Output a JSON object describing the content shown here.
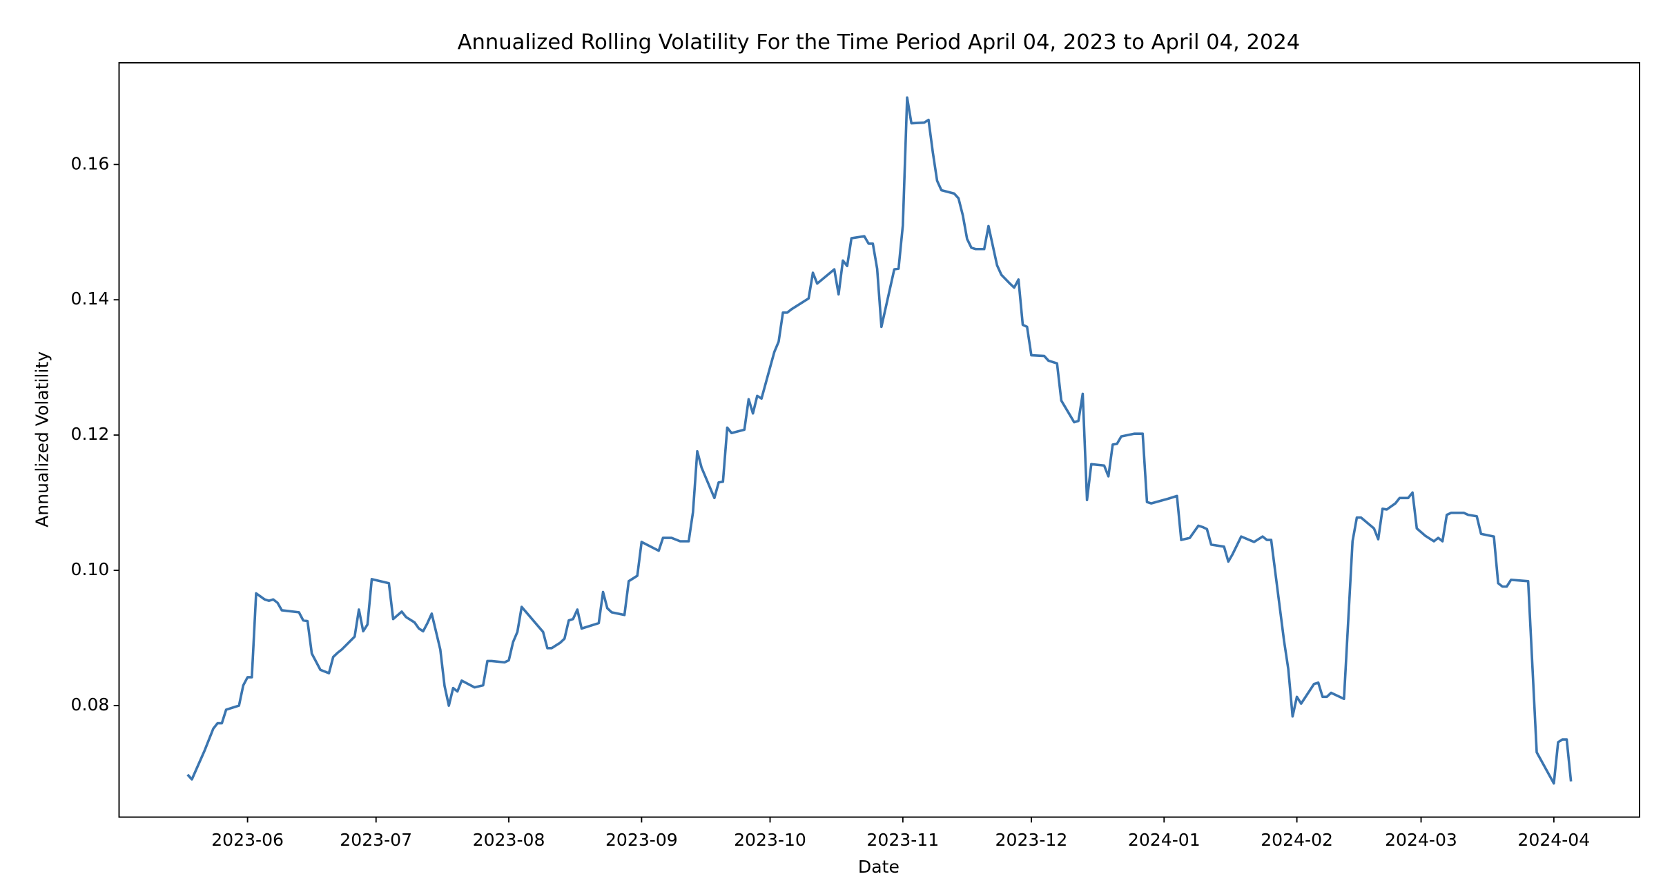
{
  "chart_data": {
    "type": "line",
    "title": "Annualized Rolling Volatility For the Time Period April 04, 2023 to April 04, 2024",
    "x_label": "Date",
    "y_label": "Annualized Volatility",
    "color": "#3b75af",
    "grid": false,
    "xlim": [
      "2023-05-02",
      "2024-04-21"
    ],
    "xticks": [
      {
        "value": "2023-06-01",
        "label": "2023-06"
      },
      {
        "value": "2023-07-01",
        "label": "2023-07"
      },
      {
        "value": "2023-08-01",
        "label": "2023-08"
      },
      {
        "value": "2023-09-01",
        "label": "2023-09"
      },
      {
        "value": "2023-10-01",
        "label": "2023-10"
      },
      {
        "value": "2023-11-01",
        "label": "2023-11"
      },
      {
        "value": "2023-12-01",
        "label": "2023-12"
      },
      {
        "value": "2024-01-01",
        "label": "2024-01"
      },
      {
        "value": "2024-02-01",
        "label": "2024-02"
      },
      {
        "value": "2024-03-01",
        "label": "2024-03"
      },
      {
        "value": "2024-04-01",
        "label": "2024-04"
      }
    ],
    "ylim": [
      0.06352,
      0.17504
    ],
    "yticks": [
      0.08,
      {
        "value": 0.1,
        "label": "0.10"
      },
      0.12,
      0.14,
      0.16
    ],
    "x": [
      "2023-05-18",
      "2023-05-19",
      "2023-05-22",
      "2023-05-24",
      "2023-05-25",
      "2023-05-26",
      "2023-05-27",
      "2023-05-29",
      "2023-05-30",
      "2023-05-31",
      "2023-06-01",
      "2023-06-02",
      "2023-06-03",
      "2023-06-05",
      "2023-06-06",
      "2023-06-07",
      "2023-06-08",
      "2023-06-09",
      "2023-06-13",
      "2023-06-14",
      "2023-06-15",
      "2023-06-16",
      "2023-06-18",
      "2023-06-20",
      "2023-06-21",
      "2023-06-22",
      "2023-06-23",
      "2023-06-26",
      "2023-06-27",
      "2023-06-28",
      "2023-06-29",
      "2023-06-30",
      "2023-07-04",
      "2023-07-05",
      "2023-07-07",
      "2023-07-08",
      "2023-07-10",
      "2023-07-11",
      "2023-07-12",
      "2023-07-13",
      "2023-07-14",
      "2023-07-16",
      "2023-07-17",
      "2023-07-18",
      "2023-07-19",
      "2023-07-20",
      "2023-07-21",
      "2023-07-24",
      "2023-07-26",
      "2023-07-27",
      "2023-07-28",
      "2023-07-31",
      "2023-08-01",
      "2023-08-02",
      "2023-08-03",
      "2023-08-04",
      "2023-08-09",
      "2023-08-10",
      "2023-08-11",
      "2023-08-13",
      "2023-08-14",
      "2023-08-15",
      "2023-08-16",
      "2023-08-17",
      "2023-08-18",
      "2023-08-22",
      "2023-08-23",
      "2023-08-24",
      "2023-08-25",
      "2023-08-28",
      "2023-08-29",
      "2023-08-31",
      "2023-09-01",
      "2023-09-05",
      "2023-09-06",
      "2023-09-08",
      "2023-09-10",
      "2023-09-12",
      "2023-09-13",
      "2023-09-14",
      "2023-09-15",
      "2023-09-18",
      "2023-09-19",
      "2023-09-20",
      "2023-09-21",
      "2023-09-22",
      "2023-09-25",
      "2023-09-26",
      "2023-09-27",
      "2023-09-28",
      "2023-09-29",
      "2023-10-02",
      "2023-10-03",
      "2023-10-04",
      "2023-10-05",
      "2023-10-06",
      "2023-10-10",
      "2023-10-11",
      "2023-10-12",
      "2023-10-16",
      "2023-10-17",
      "2023-10-18",
      "2023-10-19",
      "2023-10-20",
      "2023-10-23",
      "2023-10-24",
      "2023-10-25",
      "2023-10-26",
      "2023-10-27",
      "2023-10-30",
      "2023-10-31",
      "2023-11-01",
      "2023-11-02",
      "2023-11-03",
      "2023-11-06",
      "2023-11-07",
      "2023-11-08",
      "2023-11-09",
      "2023-11-10",
      "2023-11-13",
      "2023-11-14",
      "2023-11-15",
      "2023-11-16",
      "2023-11-17",
      "2023-11-18",
      "2023-11-20",
      "2023-11-21",
      "2023-11-23",
      "2023-11-24",
      "2023-11-26",
      "2023-11-27",
      "2023-11-28",
      "2023-11-29",
      "2023-11-30",
      "2023-12-01",
      "2023-12-04",
      "2023-12-05",
      "2023-12-07",
      "2023-12-08",
      "2023-12-11",
      "2023-12-12",
      "2023-12-13",
      "2023-12-14",
      "2023-12-15",
      "2023-12-18",
      "2023-12-19",
      "2023-12-20",
      "2023-12-21",
      "2023-12-22",
      "2023-12-25",
      "2023-12-27",
      "2023-12-28",
      "2023-12-29",
      "2024-01-02",
      "2024-01-04",
      "2024-01-05",
      "2024-01-07",
      "2024-01-09",
      "2024-01-10",
      "2024-01-11",
      "2024-01-12",
      "2024-01-15",
      "2024-01-16",
      "2024-01-17",
      "2024-01-19",
      "2024-01-22",
      "2024-01-24",
      "2024-01-25",
      "2024-01-26",
      "2024-01-29",
      "2024-01-30",
      "2024-01-31",
      "2024-02-01",
      "2024-02-02",
      "2024-02-05",
      "2024-02-06",
      "2024-02-07",
      "2024-02-08",
      "2024-02-09",
      "2024-02-12",
      "2024-02-14",
      "2024-02-15",
      "2024-02-16",
      "2024-02-19",
      "2024-02-20",
      "2024-02-21",
      "2024-02-22",
      "2024-02-24",
      "2024-02-25",
      "2024-02-27",
      "2024-02-28",
      "2024-02-29",
      "2024-03-02",
      "2024-03-04",
      "2024-03-05",
      "2024-03-06",
      "2024-03-07",
      "2024-03-08",
      "2024-03-11",
      "2024-03-12",
      "2024-03-14",
      "2024-03-15",
      "2024-03-18",
      "2024-03-19",
      "2024-03-20",
      "2024-03-21",
      "2024-03-22",
      "2024-03-26",
      "2024-03-28",
      "2024-04-01",
      "2024-04-02",
      "2024-04-03",
      "2024-04-04",
      "2024-04-05"
    ],
    "values": [
      0.0698,
      0.0691,
      0.0734,
      0.0766,
      0.0774,
      0.0774,
      0.0794,
      0.0798,
      0.08,
      0.083,
      0.0842,
      0.0842,
      0.0966,
      0.0957,
      0.0955,
      0.0957,
      0.0952,
      0.0941,
      0.0938,
      0.0926,
      0.0925,
      0.0877,
      0.0853,
      0.0848,
      0.0872,
      0.0878,
      0.0883,
      0.0902,
      0.0942,
      0.091,
      0.092,
      0.0987,
      0.0981,
      0.0928,
      0.0939,
      0.0931,
      0.0923,
      0.0914,
      0.091,
      0.0922,
      0.0936,
      0.0883,
      0.0829,
      0.08,
      0.0826,
      0.0821,
      0.0837,
      0.0827,
      0.083,
      0.0866,
      0.0866,
      0.0864,
      0.0867,
      0.0894,
      0.0909,
      0.0946,
      0.0909,
      0.0885,
      0.0885,
      0.0893,
      0.0899,
      0.0926,
      0.0928,
      0.0942,
      0.0914,
      0.0922,
      0.0968,
      0.0944,
      0.0938,
      0.0934,
      0.0984,
      0.0992,
      0.1042,
      0.1029,
      0.1048,
      0.1048,
      0.1043,
      0.1043,
      0.1086,
      0.1176,
      0.1152,
      0.1107,
      0.113,
      0.1131,
      0.1211,
      0.1203,
      0.1208,
      0.1253,
      0.1232,
      0.1258,
      0.1254,
      0.1323,
      0.1338,
      0.1381,
      0.1381,
      0.1386,
      0.1402,
      0.144,
      0.1424,
      0.1445,
      0.1408,
      0.1458,
      0.145,
      0.1491,
      0.1494,
      0.1483,
      0.1483,
      0.1446,
      0.136,
      0.1445,
      0.1446,
      0.151,
      0.1699,
      0.1661,
      0.1662,
      0.1666,
      0.1618,
      0.1576,
      0.1562,
      0.1557,
      0.155,
      0.1525,
      0.149,
      0.1477,
      0.1475,
      0.1475,
      0.1509,
      0.1451,
      0.1437,
      0.1424,
      0.1418,
      0.143,
      0.1363,
      0.136,
      0.1318,
      0.1317,
      0.131,
      0.1306,
      0.1251,
      0.1219,
      0.1221,
      0.1261,
      0.1104,
      0.1157,
      0.1155,
      0.1139,
      0.1186,
      0.1187,
      0.1198,
      0.1202,
      0.1202,
      0.1101,
      0.1099,
      0.1106,
      0.111,
      0.1045,
      0.1048,
      0.1066,
      0.1064,
      0.1061,
      0.1038,
      0.1035,
      0.1013,
      0.1024,
      0.105,
      0.1042,
      0.105,
      0.1045,
      0.1045,
      0.0896,
      0.0854,
      0.0784,
      0.0813,
      0.0803,
      0.0832,
      0.0834,
      0.0813,
      0.0813,
      0.0819,
      0.081,
      0.1043,
      0.1078,
      0.1078,
      0.1062,
      0.1046,
      0.1091,
      0.109,
      0.1099,
      0.1107,
      0.1107,
      0.1115,
      0.1062,
      0.1051,
      0.1043,
      0.1048,
      0.1043,
      0.1082,
      0.1085,
      0.1085,
      0.1082,
      0.108,
      0.1054,
      0.105,
      0.0981,
      0.0976,
      0.0976,
      0.0986,
      0.0984,
      0.0731,
      0.0685,
      0.0746,
      0.075,
      0.075,
      0.0688
    ]
  }
}
